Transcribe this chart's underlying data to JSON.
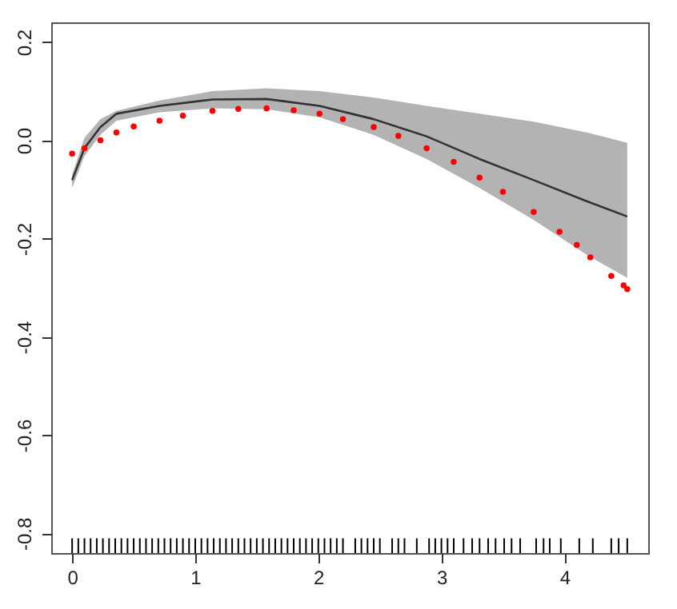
{
  "chart_data": {
    "type": "line",
    "xlim": [
      -0.17,
      4.68
    ],
    "ylim": [
      -0.84,
      0.24
    ],
    "xticks": [
      0,
      1,
      2,
      3,
      4
    ],
    "yticks": [
      -0.8,
      -0.6,
      -0.4,
      -0.2,
      {
        "value": 0,
        "label": "0.0"
      },
      0.2
    ],
    "grid": false,
    "series": [
      {
        "color": "#333333",
        "x": [
          0,
          0.1,
          0.23,
          0.36,
          0.71,
          1.14,
          1.58,
          2.01,
          2.45,
          2.88,
          3.31,
          3.75,
          4.18,
          4.51
        ],
        "values": [
          -0.081,
          -0.016,
          0.027,
          0.054,
          0.07,
          0.083,
          0.084,
          0.07,
          0.043,
          0.008,
          -0.038,
          -0.081,
          -0.124,
          -0.155
        ],
        "lower": [
          -0.097,
          -0.032,
          0.011,
          0.04,
          0.057,
          0.065,
          0.063,
          0.047,
          0.011,
          -0.038,
          -0.097,
          -0.162,
          -0.233,
          -0.28
        ],
        "upper": [
          -0.07,
          0.005,
          0.043,
          0.06,
          0.081,
          0.1,
          0.106,
          0.1,
          0.087,
          0.07,
          0.054,
          0.038,
          0.016,
          -0.005
        ]
      },
      {
        "type": "scatter",
        "color": "#ff0000",
        "marker": "circle",
        "x": [
          0,
          0.1,
          0.23,
          0.36,
          0.5,
          0.71,
          0.9,
          1.14,
          1.35,
          1.58,
          1.8,
          2.01,
          2.2,
          2.45,
          2.65,
          2.88,
          3.1,
          3.31,
          3.5,
          3.75,
          3.96,
          4.1,
          4.21,
          4.38,
          4.48,
          4.51
        ],
        "values": [
          -0.027,
          -0.016,
          0,
          0.016,
          0.028,
          0.04,
          0.05,
          0.06,
          0.064,
          0.065,
          0.061,
          0.054,
          0.043,
          0.027,
          0.009,
          -0.016,
          -0.044,
          -0.076,
          -0.105,
          -0.146,
          -0.186,
          -0.213,
          -0.238,
          -0.276,
          -0.295,
          -0.303
        ]
      },
      {
        "type": "bar",
        "color": "#000000",
        "x": [
          0,
          0.05,
          0.1,
          0.15,
          0.2,
          0.25,
          0.3,
          0.35,
          0.4,
          0.45,
          0.5,
          0.55,
          0.6,
          0.65,
          0.7,
          0.75,
          0.8,
          0.85,
          0.9,
          0.95,
          1,
          1.05,
          1.1,
          1.15,
          1.2,
          1.25,
          1.3,
          1.35,
          1.4,
          1.45,
          1.5,
          1.55,
          1.6,
          1.65,
          1.7,
          1.75,
          1.8,
          1.85,
          1.9,
          1.95,
          2,
          2.05,
          2.1,
          2.15,
          2.2,
          2.3,
          2.35,
          2.4,
          2.45,
          2.5,
          2.6,
          2.65,
          2.7,
          2.8,
          2.9,
          2.95,
          3,
          3.05,
          3.1,
          3.18,
          3.25,
          3.31,
          3.38,
          3.44,
          3.51,
          3.57,
          3.64,
          3.77,
          3.83,
          3.88,
          3.97,
          4.12,
          4.23,
          4.38,
          4.44,
          4.51
        ],
        "base": [
          -0.84,
          -0.84,
          -0.84,
          -0.84,
          -0.84,
          -0.84,
          -0.84,
          -0.84,
          -0.84,
          -0.84,
          -0.84,
          -0.84,
          -0.84,
          -0.84,
          -0.84,
          -0.84,
          -0.84,
          -0.84,
          -0.84,
          -0.84,
          -0.84,
          -0.84,
          -0.84,
          -0.84,
          -0.84,
          -0.84,
          -0.84,
          -0.84,
          -0.84,
          -0.84,
          -0.84,
          -0.84,
          -0.84,
          -0.84,
          -0.84,
          -0.84,
          -0.84,
          -0.84,
          -0.84,
          -0.84,
          -0.84,
          -0.84,
          -0.84,
          -0.84,
          -0.84,
          -0.84,
          -0.84,
          -0.84,
          -0.84,
          -0.84,
          -0.84,
          -0.84,
          -0.84,
          -0.84,
          -0.84,
          -0.84,
          -0.84,
          -0.84,
          -0.84,
          -0.84,
          -0.84,
          -0.84,
          -0.84,
          -0.84,
          -0.84,
          -0.84,
          -0.84,
          -0.84,
          -0.84,
          -0.84,
          -0.84,
          -0.84,
          -0.84,
          -0.84,
          -0.84,
          -0.84
        ],
        "values": [
          0.03,
          0.03,
          0.03,
          0.03,
          0.03,
          0.03,
          0.03,
          0.03,
          0.03,
          0.03,
          0.03,
          0.03,
          0.03,
          0.03,
          0.03,
          0.03,
          0.03,
          0.03,
          0.03,
          0.03,
          0.03,
          0.03,
          0.03,
          0.03,
          0.03,
          0.03,
          0.03,
          0.03,
          0.03,
          0.03,
          0.03,
          0.03,
          0.03,
          0.03,
          0.03,
          0.03,
          0.03,
          0.03,
          0.03,
          0.03,
          0.03,
          0.03,
          0.03,
          0.03,
          0.03,
          0.03,
          0.03,
          0.03,
          0.03,
          0.03,
          0.03,
          0.03,
          0.03,
          0.03,
          0.03,
          0.03,
          0.03,
          0.03,
          0.03,
          0.03,
          0.03,
          0.03,
          0.03,
          0.03,
          0.03,
          0.03,
          0.03,
          0.03,
          0.03,
          0.03,
          0.03,
          0.03,
          0.03,
          0.03,
          0.03,
          0.03
        ]
      }
    ]
  }
}
